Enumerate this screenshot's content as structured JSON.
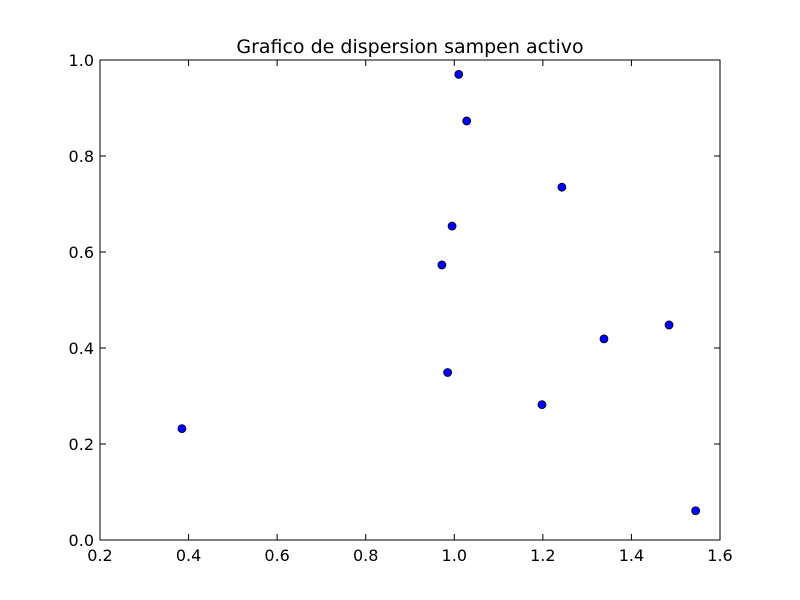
{
  "chart_data": {
    "type": "scatter",
    "title": "Grafico de dispersion sampen activo",
    "xlabel": "",
    "ylabel": "",
    "xlim": [
      0.2,
      1.6
    ],
    "ylim": [
      0.0,
      1.0
    ],
    "grid": false,
    "legend": "none",
    "colors": {
      "marker_fill": "#0000ff",
      "marker_edge": "#000000",
      "axis": "#000000",
      "background": "#ffffff"
    },
    "x_ticks": [
      0.2,
      0.4,
      0.6,
      0.8,
      1.0,
      1.2,
      1.4,
      1.6
    ],
    "x_tick_labels": [
      "0.2",
      "0.4",
      "0.6",
      "0.8",
      "1.0",
      "1.2",
      "1.4",
      "1.6"
    ],
    "y_ticks": [
      0.0,
      0.2,
      0.4,
      0.6,
      0.8,
      1.0
    ],
    "y_tick_labels": [
      "0.0",
      "0.2",
      "0.4",
      "0.6",
      "0.8",
      "1.0"
    ],
    "points": [
      {
        "x": 0.385,
        "y": 0.232
      },
      {
        "x": 0.972,
        "y": 0.573
      },
      {
        "x": 0.985,
        "y": 0.349
      },
      {
        "x": 0.995,
        "y": 0.654
      },
      {
        "x": 1.01,
        "y": 0.97
      },
      {
        "x": 1.028,
        "y": 0.873
      },
      {
        "x": 1.198,
        "y": 0.282
      },
      {
        "x": 1.243,
        "y": 0.735
      },
      {
        "x": 1.338,
        "y": 0.419
      },
      {
        "x": 1.485,
        "y": 0.448
      },
      {
        "x": 1.545,
        "y": 0.061
      }
    ]
  }
}
